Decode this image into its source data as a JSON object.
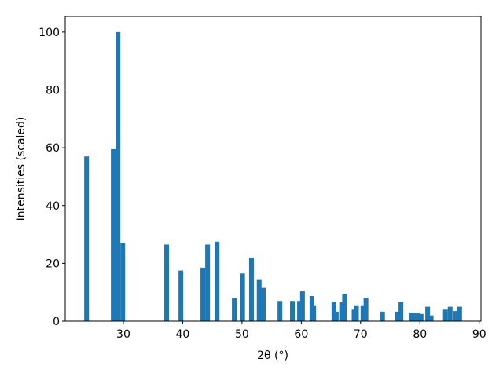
{
  "chart_data": {
    "type": "bar",
    "xlabel": "2θ (°)",
    "ylabel": "Intensities (scaled)",
    "color": "#1f77b4",
    "x": [
      23.8,
      28.3,
      29.1,
      29.9,
      37.3,
      39.7,
      43.4,
      44.2,
      45.8,
      48.7,
      50.1,
      51.6,
      52.9,
      53.6,
      56.4,
      58.5,
      59.7,
      60.2,
      61.8,
      62.1,
      65.5,
      65.9,
      66.8,
      67.3,
      68.9,
      69.3,
      70.4,
      70.9,
      73.7,
      76.2,
      76.8,
      78.6,
      79.1,
      79.7,
      80.2,
      81.3,
      81.9,
      84.3,
      85.1,
      86.0,
      86.7
    ],
    "values": [
      57,
      59.5,
      100,
      27,
      26.5,
      17.5,
      18.5,
      26.5,
      27.5,
      8,
      16.5,
      22,
      14.5,
      11.5,
      7,
      7,
      7,
      10.3,
      8.7,
      5.5,
      6.7,
      3.3,
      6.5,
      9.5,
      4,
      5.5,
      5.5,
      8,
      3.3,
      3.3,
      6.7,
      3,
      2.7,
      2.7,
      2.5,
      5,
      2,
      4,
      5,
      3.5,
      5
    ],
    "xlim": [
      20.2,
      90.3
    ],
    "ylim": [
      0,
      105.4
    ],
    "xticks": [
      30,
      40,
      50,
      60,
      70,
      80,
      90
    ],
    "yticks": [
      0,
      20,
      40,
      60,
      80,
      100
    ]
  }
}
